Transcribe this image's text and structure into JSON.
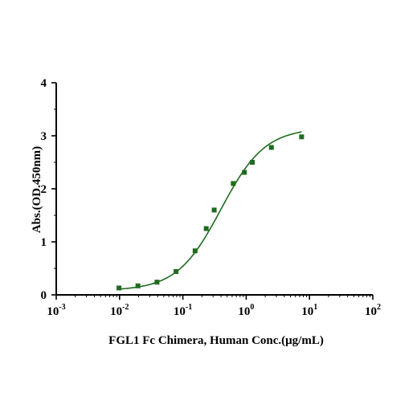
{
  "chart_data": {
    "type": "scatter",
    "xlabel": "FGL1 Fc Chimera, Human Conc.(μg/mL)",
    "ylabel": "Abs.(OD.450nm)",
    "x_scale": "log10",
    "xlim": [
      0.001,
      100
    ],
    "ylim": [
      0,
      4
    ],
    "x_ticks": [
      {
        "base": "10",
        "exp": "-3"
      },
      {
        "base": "10",
        "exp": "-2"
      },
      {
        "base": "10",
        "exp": "-1"
      },
      {
        "base": "10",
        "exp": "0"
      },
      {
        "base": "10",
        "exp": "1"
      },
      {
        "base": "10",
        "exp": "2"
      }
    ],
    "y_ticks": [
      "0",
      "1",
      "2",
      "3",
      "4"
    ],
    "grid": false,
    "legend": "none",
    "colors": {
      "series": "#1f6b1f",
      "axis": "#000000"
    },
    "series": [
      {
        "marker": "square",
        "fit": "4PL sigmoid",
        "x": [
          0.0098,
          0.0195,
          0.039,
          0.078,
          0.156,
          0.234,
          0.3125,
          0.625,
          0.9375,
          1.25,
          2.5,
          7.5
        ],
        "y": [
          0.13,
          0.17,
          0.24,
          0.44,
          0.83,
          1.25,
          1.6,
          2.1,
          2.31,
          2.5,
          2.78,
          2.98
        ]
      }
    ]
  }
}
